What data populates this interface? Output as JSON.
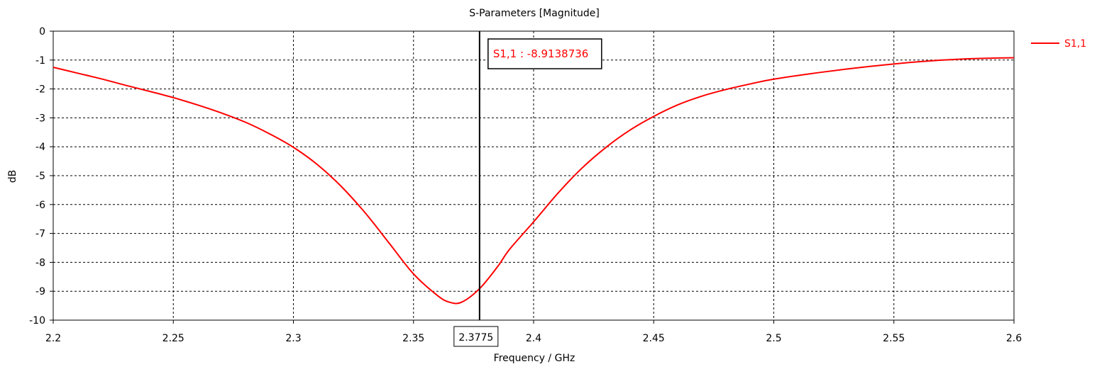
{
  "chart_data": {
    "type": "line",
    "title": "S-Parameters [Magnitude]",
    "xlabel": "Frequency / GHz",
    "ylabel": "dB",
    "xlim": [
      2.2,
      2.6
    ],
    "ylim": [
      -10,
      0
    ],
    "x_ticks": [
      "2.2",
      "2.25",
      "2.3",
      "2.35",
      "2.4",
      "2.45",
      "2.5",
      "2.55",
      "2.6"
    ],
    "y_ticks": [
      "0",
      "-1",
      "-2",
      "-3",
      "-4",
      "-5",
      "-6",
      "-7",
      "-8",
      "-9",
      "-10"
    ],
    "grid": true,
    "legend_position": "right",
    "series": [
      {
        "name": "S1,1",
        "color": "#ff0000",
        "x": [
          2.2,
          2.21,
          2.22,
          2.23,
          2.24,
          2.25,
          2.26,
          2.27,
          2.28,
          2.29,
          2.3,
          2.31,
          2.32,
          2.33,
          2.34,
          2.35,
          2.36,
          2.365,
          2.37,
          2.3775,
          2.385,
          2.39,
          2.4,
          2.41,
          2.42,
          2.43,
          2.44,
          2.45,
          2.46,
          2.47,
          2.48,
          2.49,
          2.5,
          2.52,
          2.54,
          2.56,
          2.58,
          2.6
        ],
        "y": [
          -1.25,
          -1.45,
          -1.65,
          -1.87,
          -2.08,
          -2.3,
          -2.55,
          -2.83,
          -3.15,
          -3.55,
          -4.02,
          -4.62,
          -5.38,
          -6.3,
          -7.35,
          -8.4,
          -9.15,
          -9.38,
          -9.38,
          -8.91,
          -8.15,
          -7.55,
          -6.6,
          -5.62,
          -4.75,
          -4.03,
          -3.43,
          -2.95,
          -2.55,
          -2.25,
          -2.02,
          -1.83,
          -1.66,
          -1.42,
          -1.22,
          -1.06,
          -0.96,
          -0.92
        ]
      }
    ],
    "marker": {
      "x": 2.3775,
      "x_label": "2.3775",
      "label": "S1,1 : -8.9138736",
      "value": -8.9138736
    }
  },
  "colors": {
    "curve": "#ff0000",
    "grid": "#000000",
    "marker_line": "#000000"
  }
}
